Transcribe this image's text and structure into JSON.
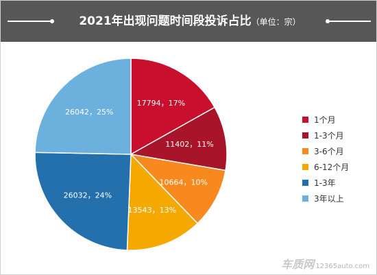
{
  "header": {
    "title": "2021年出现问题时间段投诉占比",
    "unit": "（单位：宗）"
  },
  "chart_data": {
    "type": "pie",
    "title": "2021年出现问题时间段投诉占比（单位：宗）",
    "legend_position": "right",
    "slices": [
      {
        "name": "1个月",
        "value": 17794,
        "percent": 17,
        "label": "17794，17%",
        "color": "#c8102e"
      },
      {
        "name": "1-3个月",
        "value": 11402,
        "percent": 11,
        "label": "11402，11%",
        "color": "#a8152b"
      },
      {
        "name": "3-6个月",
        "value": 10664,
        "percent": 10,
        "label": "10664，10%",
        "color": "#f7891e"
      },
      {
        "name": "6-12个月",
        "value": 13543,
        "percent": 13,
        "label": "13543，13%",
        "color": "#f5a800"
      },
      {
        "name": "1-3年",
        "value": 26032,
        "percent": 24,
        "label": "26032，24%",
        "color": "#2470ad"
      },
      {
        "name": "3年以上",
        "value": 26042,
        "percent": 25,
        "label": "26042，25%",
        "color": "#6cb0de"
      }
    ]
  },
  "watermark": {
    "logo": "车质网",
    "url": "12365auto.com"
  }
}
